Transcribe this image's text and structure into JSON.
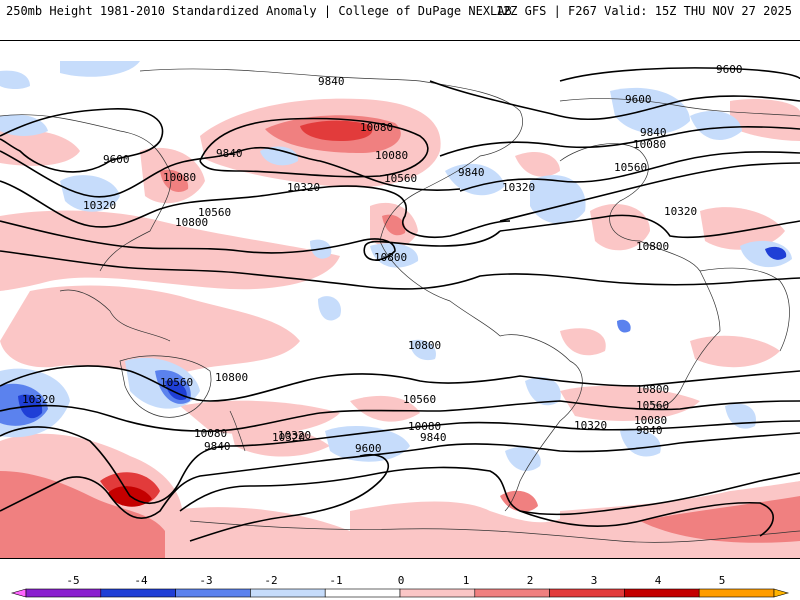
{
  "header": {
    "left": "250mb Height 1981-2010 Standardized Anomaly | College of DuPage NEXLAB",
    "right": "12Z GFS | F267 Valid: 15Z THU NOV 27 2025"
  },
  "colors": {
    "neg5": "#ff66ff",
    "neg4": "#8a1fcf",
    "neg3": "#1f3fd6",
    "neg2": "#5b82ee",
    "neg1": "#c6dcfb",
    "zero": "#ffffff",
    "pos1": "#fbc6c6",
    "pos2": "#f08080",
    "pos3": "#e23b3b",
    "pos4": "#c40000",
    "pos5": "#ff9d00",
    "pos6": "#ffb400",
    "contour": "#000000",
    "coast": "#333333"
  },
  "contour_labels": [
    {
      "id": "c9840a",
      "text": "9840"
    },
    {
      "id": "c10080a",
      "text": "10080"
    },
    {
      "id": "c9600a",
      "text": "9600"
    },
    {
      "id": "c9840b",
      "text": "9840"
    },
    {
      "id": "c10080b",
      "text": "10080"
    },
    {
      "id": "c10320a",
      "text": "10320"
    },
    {
      "id": "c10560a",
      "text": "10560"
    },
    {
      "id": "c10800a",
      "text": "10800"
    },
    {
      "id": "c10320b",
      "text": "10320"
    },
    {
      "id": "c10080c",
      "text": "10080"
    },
    {
      "id": "c10560b",
      "text": "10560"
    },
    {
      "id": "c10800b",
      "text": "10800"
    },
    {
      "id": "c9840c",
      "text": "9840"
    },
    {
      "id": "c10320c",
      "text": "10320"
    },
    {
      "id": "c9600b",
      "text": "9600"
    },
    {
      "id": "c9600c",
      "text": "9600"
    },
    {
      "id": "c9840d",
      "text": "9840"
    },
    {
      "id": "c10080d",
      "text": "10080"
    },
    {
      "id": "c10560c",
      "text": "10560"
    },
    {
      "id": "c10320d",
      "text": "10320"
    },
    {
      "id": "c10800c",
      "text": "10800"
    },
    {
      "id": "c10800d",
      "text": "10800"
    },
    {
      "id": "c10560d",
      "text": "10560"
    },
    {
      "id": "c10320e",
      "text": "10320"
    },
    {
      "id": "c10560e",
      "text": "10560"
    },
    {
      "id": "c10800e",
      "text": "10800"
    },
    {
      "id": "c10320f",
      "text": "10320"
    },
    {
      "id": "c10080e",
      "text": "10080"
    },
    {
      "id": "c9840e",
      "text": "9840"
    },
    {
      "id": "c10800f",
      "text": "10800"
    },
    {
      "id": "c10560f",
      "text": "10560"
    },
    {
      "id": "c10320g",
      "text": "10320"
    },
    {
      "id": "c10080f",
      "text": "10080"
    },
    {
      "id": "c9840f",
      "text": "9840"
    },
    {
      "id": "c9600d",
      "text": "9600"
    },
    {
      "id": "c10320h",
      "text": "10320"
    },
    {
      "id": "c10080g",
      "text": "10080"
    },
    {
      "id": "c9840g",
      "text": "9840"
    }
  ],
  "colorbar": {
    "ticks": [
      "-5",
      "-4",
      "-3",
      "-2",
      "-1",
      "0",
      "1",
      "2",
      "3",
      "4",
      "5"
    ],
    "segments": [
      "neg5",
      "neg4",
      "neg3",
      "neg2",
      "neg1",
      "zero",
      "pos1",
      "pos2",
      "pos3",
      "pos4",
      "pos5",
      "pos6"
    ]
  }
}
